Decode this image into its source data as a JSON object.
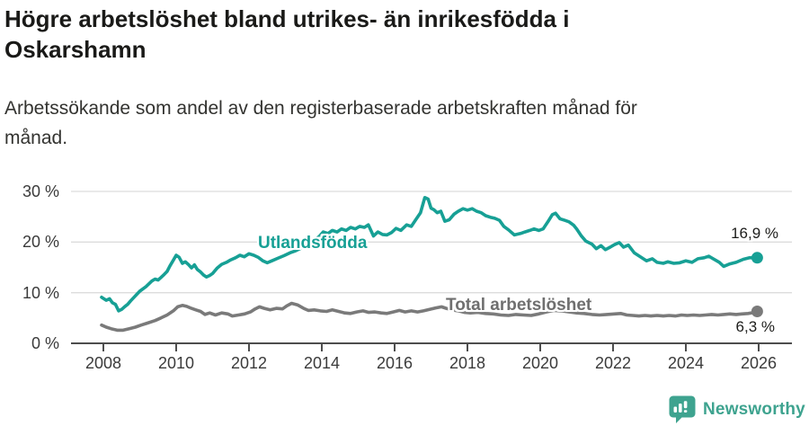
{
  "header": {
    "title_lines": [
      "Högre arbetslöshet bland utrikes- än inrikesfödda i",
      "Oskarshamn"
    ],
    "subtitle_lines": [
      "Arbetssökande som andel av den registerbaserade arbetskraften månad för",
      "månad."
    ]
  },
  "chart_data": {
    "type": "line",
    "title": "Högre arbetslöshet bland utrikes- än inrikesfödda i Oskarshamn",
    "subtitle": "Arbetssökande som andel av den registerbaserade arbetskraften månad för månad.",
    "unit": "%",
    "grid": "horizontal-only",
    "x_axis": {
      "ticks": [
        2008,
        2010,
        2012,
        2014,
        2016,
        2018,
        2020,
        2022,
        2024,
        2026
      ],
      "range": [
        2007.1,
        2026.9
      ]
    },
    "y_axis": {
      "tick_values": [
        0,
        10,
        20,
        30
      ],
      "tick_labels": [
        "0 %",
        "10 %",
        "20 %",
        "30 %"
      ],
      "range": [
        0,
        30
      ]
    },
    "colors": {
      "grid": "#dcdcdc",
      "axis": "#4d4d4d",
      "tick_text": "#3b3b3b"
    },
    "series": [
      {
        "name": "Utlandsfödda",
        "color": "#17A095",
        "end_label": "16,9 %",
        "end_value": 16.9,
        "points": [
          [
            2007.95,
            9.1
          ],
          [
            2008.08,
            8.5
          ],
          [
            2008.17,
            8.8
          ],
          [
            2008.25,
            8.0
          ],
          [
            2008.33,
            7.7
          ],
          [
            2008.42,
            6.4
          ],
          [
            2008.5,
            6.7
          ],
          [
            2008.58,
            7.2
          ],
          [
            2008.67,
            7.7
          ],
          [
            2008.75,
            8.4
          ],
          [
            2008.83,
            9.0
          ],
          [
            2008.92,
            9.7
          ],
          [
            2009.0,
            10.3
          ],
          [
            2009.17,
            11.2
          ],
          [
            2009.33,
            12.3
          ],
          [
            2009.42,
            12.7
          ],
          [
            2009.5,
            12.5
          ],
          [
            2009.58,
            13.0
          ],
          [
            2009.67,
            13.6
          ],
          [
            2009.75,
            14.2
          ],
          [
            2009.83,
            15.3
          ],
          [
            2009.92,
            16.4
          ],
          [
            2010.0,
            17.4
          ],
          [
            2010.08,
            17.0
          ],
          [
            2010.17,
            15.8
          ],
          [
            2010.25,
            16.1
          ],
          [
            2010.33,
            15.6
          ],
          [
            2010.42,
            14.9
          ],
          [
            2010.5,
            15.5
          ],
          [
            2010.58,
            14.6
          ],
          [
            2010.67,
            14.1
          ],
          [
            2010.75,
            13.5
          ],
          [
            2010.83,
            13.1
          ],
          [
            2010.92,
            13.4
          ],
          [
            2011.0,
            13.8
          ],
          [
            2011.13,
            14.9
          ],
          [
            2011.25,
            15.6
          ],
          [
            2011.38,
            16.0
          ],
          [
            2011.5,
            16.5
          ],
          [
            2011.63,
            16.9
          ],
          [
            2011.75,
            17.4
          ],
          [
            2011.87,
            17.1
          ],
          [
            2012.0,
            17.7
          ],
          [
            2012.13,
            17.4
          ],
          [
            2012.25,
            17.0
          ],
          [
            2012.38,
            16.3
          ],
          [
            2012.5,
            15.9
          ],
          [
            2012.63,
            16.3
          ],
          [
            2012.79,
            16.8
          ],
          [
            2012.96,
            17.3
          ],
          [
            2013.13,
            17.9
          ],
          [
            2013.29,
            18.3
          ],
          [
            2013.46,
            18.9
          ],
          [
            2013.63,
            19.5
          ],
          [
            2013.79,
            20.3
          ],
          [
            2013.93,
            21.1
          ],
          [
            2014.04,
            22.0
          ],
          [
            2014.17,
            21.7
          ],
          [
            2014.29,
            22.3
          ],
          [
            2014.42,
            22.0
          ],
          [
            2014.54,
            22.6
          ],
          [
            2014.67,
            22.3
          ],
          [
            2014.79,
            22.9
          ],
          [
            2014.92,
            22.6
          ],
          [
            2015.04,
            23.1
          ],
          [
            2015.17,
            22.9
          ],
          [
            2015.28,
            23.4
          ],
          [
            2015.42,
            21.2
          ],
          [
            2015.54,
            22.0
          ],
          [
            2015.67,
            21.5
          ],
          [
            2015.79,
            21.4
          ],
          [
            2015.92,
            21.9
          ],
          [
            2016.04,
            22.7
          ],
          [
            2016.17,
            22.3
          ],
          [
            2016.33,
            23.4
          ],
          [
            2016.46,
            23.1
          ],
          [
            2016.58,
            24.4
          ],
          [
            2016.71,
            25.8
          ],
          [
            2016.83,
            28.8
          ],
          [
            2016.92,
            28.5
          ],
          [
            2017.0,
            26.7
          ],
          [
            2017.08,
            26.4
          ],
          [
            2017.17,
            25.8
          ],
          [
            2017.27,
            26.1
          ],
          [
            2017.38,
            24.1
          ],
          [
            2017.5,
            24.4
          ],
          [
            2017.63,
            25.5
          ],
          [
            2017.75,
            26.1
          ],
          [
            2017.88,
            26.6
          ],
          [
            2018.0,
            26.3
          ],
          [
            2018.13,
            26.6
          ],
          [
            2018.25,
            26.1
          ],
          [
            2018.38,
            25.8
          ],
          [
            2018.5,
            25.2
          ],
          [
            2018.63,
            24.9
          ],
          [
            2018.75,
            24.7
          ],
          [
            2018.88,
            24.3
          ],
          [
            2019.0,
            23.1
          ],
          [
            2019.13,
            22.4
          ],
          [
            2019.29,
            21.4
          ],
          [
            2019.46,
            21.7
          ],
          [
            2019.58,
            22.0
          ],
          [
            2019.71,
            22.3
          ],
          [
            2019.83,
            22.6
          ],
          [
            2019.96,
            22.3
          ],
          [
            2020.08,
            22.6
          ],
          [
            2020.21,
            24.0
          ],
          [
            2020.33,
            25.4
          ],
          [
            2020.42,
            25.7
          ],
          [
            2020.54,
            24.6
          ],
          [
            2020.67,
            24.3
          ],
          [
            2020.79,
            24.0
          ],
          [
            2020.92,
            23.3
          ],
          [
            2021.0,
            22.6
          ],
          [
            2021.13,
            21.2
          ],
          [
            2021.25,
            20.2
          ],
          [
            2021.42,
            19.6
          ],
          [
            2021.54,
            18.7
          ],
          [
            2021.67,
            19.3
          ],
          [
            2021.79,
            18.5
          ],
          [
            2021.92,
            19.0
          ],
          [
            2022.04,
            19.5
          ],
          [
            2022.17,
            19.9
          ],
          [
            2022.29,
            19.0
          ],
          [
            2022.42,
            19.4
          ],
          [
            2022.58,
            17.9
          ],
          [
            2022.75,
            17.1
          ],
          [
            2022.92,
            16.3
          ],
          [
            2023.08,
            16.7
          ],
          [
            2023.21,
            16.0
          ],
          [
            2023.38,
            15.8
          ],
          [
            2023.5,
            16.1
          ],
          [
            2023.67,
            15.8
          ],
          [
            2023.83,
            15.9
          ],
          [
            2024.0,
            16.3
          ],
          [
            2024.17,
            16.0
          ],
          [
            2024.33,
            16.7
          ],
          [
            2024.5,
            16.9
          ],
          [
            2024.63,
            17.2
          ],
          [
            2024.75,
            16.7
          ],
          [
            2024.92,
            16.0
          ],
          [
            2025.04,
            15.2
          ],
          [
            2025.21,
            15.7
          ],
          [
            2025.38,
            16.0
          ],
          [
            2025.58,
            16.6
          ],
          [
            2025.75,
            16.9
          ],
          [
            2025.96,
            16.9
          ]
        ]
      },
      {
        "name": "Total arbetslöshet",
        "color": "#7A7A7A",
        "label_color": "#6f6f6f",
        "end_label": "6,3 %",
        "end_value": 6.3,
        "points": [
          [
            2007.95,
            3.6
          ],
          [
            2008.08,
            3.2
          ],
          [
            2008.21,
            2.9
          ],
          [
            2008.38,
            2.6
          ],
          [
            2008.54,
            2.6
          ],
          [
            2008.71,
            2.9
          ],
          [
            2008.88,
            3.2
          ],
          [
            2009.04,
            3.6
          ],
          [
            2009.21,
            4.0
          ],
          [
            2009.42,
            4.5
          ],
          [
            2009.58,
            5.0
          ],
          [
            2009.75,
            5.6
          ],
          [
            2009.92,
            6.4
          ],
          [
            2010.04,
            7.2
          ],
          [
            2010.17,
            7.5
          ],
          [
            2010.29,
            7.3
          ],
          [
            2010.42,
            6.9
          ],
          [
            2010.54,
            6.6
          ],
          [
            2010.67,
            6.3
          ],
          [
            2010.79,
            5.7
          ],
          [
            2010.92,
            6.0
          ],
          [
            2011.08,
            5.6
          ],
          [
            2011.25,
            6.0
          ],
          [
            2011.42,
            5.8
          ],
          [
            2011.54,
            5.4
          ],
          [
            2011.71,
            5.6
          ],
          [
            2011.88,
            5.8
          ],
          [
            2012.04,
            6.2
          ],
          [
            2012.17,
            6.8
          ],
          [
            2012.29,
            7.2
          ],
          [
            2012.42,
            6.9
          ],
          [
            2012.58,
            6.6
          ],
          [
            2012.75,
            6.9
          ],
          [
            2012.92,
            6.8
          ],
          [
            2013.04,
            7.4
          ],
          [
            2013.17,
            7.9
          ],
          [
            2013.33,
            7.6
          ],
          [
            2013.5,
            6.9
          ],
          [
            2013.63,
            6.5
          ],
          [
            2013.79,
            6.6
          ],
          [
            2013.96,
            6.4
          ],
          [
            2014.13,
            6.3
          ],
          [
            2014.29,
            6.6
          ],
          [
            2014.46,
            6.3
          ],
          [
            2014.63,
            6.0
          ],
          [
            2014.79,
            5.9
          ],
          [
            2014.96,
            6.2
          ],
          [
            2015.13,
            6.4
          ],
          [
            2015.29,
            6.1
          ],
          [
            2015.46,
            6.2
          ],
          [
            2015.63,
            6.0
          ],
          [
            2015.79,
            5.9
          ],
          [
            2015.96,
            6.2
          ],
          [
            2016.13,
            6.5
          ],
          [
            2016.29,
            6.2
          ],
          [
            2016.46,
            6.4
          ],
          [
            2016.63,
            6.2
          ],
          [
            2016.79,
            6.4
          ],
          [
            2016.96,
            6.7
          ],
          [
            2017.13,
            7.0
          ],
          [
            2017.29,
            7.2
          ],
          [
            2017.42,
            6.9
          ],
          [
            2017.58,
            6.6
          ],
          [
            2017.75,
            6.4
          ],
          [
            2017.92,
            6.1
          ],
          [
            2018.08,
            6.0
          ],
          [
            2018.29,
            6.1
          ],
          [
            2018.5,
            5.9
          ],
          [
            2018.71,
            5.8
          ],
          [
            2018.92,
            5.6
          ],
          [
            2019.13,
            5.5
          ],
          [
            2019.33,
            5.7
          ],
          [
            2019.54,
            5.6
          ],
          [
            2019.75,
            5.5
          ],
          [
            2019.96,
            5.8
          ],
          [
            2020.17,
            6.2
          ],
          [
            2020.38,
            6.5
          ],
          [
            2020.58,
            6.4
          ],
          [
            2020.79,
            6.2
          ],
          [
            2021.0,
            6.0
          ],
          [
            2021.21,
            5.9
          ],
          [
            2021.42,
            5.7
          ],
          [
            2021.63,
            5.6
          ],
          [
            2021.83,
            5.7
          ],
          [
            2022.04,
            5.8
          ],
          [
            2022.21,
            5.9
          ],
          [
            2022.38,
            5.6
          ],
          [
            2022.54,
            5.5
          ],
          [
            2022.71,
            5.4
          ],
          [
            2022.88,
            5.5
          ],
          [
            2023.04,
            5.4
          ],
          [
            2023.21,
            5.5
          ],
          [
            2023.38,
            5.4
          ],
          [
            2023.54,
            5.5
          ],
          [
            2023.71,
            5.4
          ],
          [
            2023.88,
            5.6
          ],
          [
            2024.04,
            5.5
          ],
          [
            2024.21,
            5.6
          ],
          [
            2024.38,
            5.5
          ],
          [
            2024.54,
            5.6
          ],
          [
            2024.71,
            5.7
          ],
          [
            2024.88,
            5.6
          ],
          [
            2025.04,
            5.7
          ],
          [
            2025.21,
            5.8
          ],
          [
            2025.38,
            5.7
          ],
          [
            2025.54,
            5.8
          ],
          [
            2025.71,
            5.9
          ],
          [
            2025.88,
            6.1
          ],
          [
            2025.96,
            6.3
          ]
        ]
      }
    ]
  },
  "branding": {
    "logo_text": "Newsworthy",
    "logo_color": "#3EA38F"
  }
}
